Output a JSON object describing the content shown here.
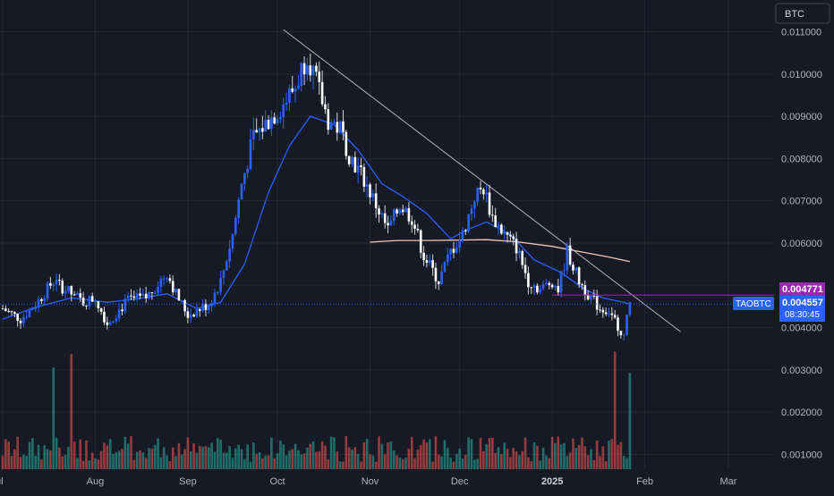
{
  "currency_badge": "BTC",
  "chart_data": {
    "type": "candlestick",
    "symbol": "TAOBTC",
    "title": "",
    "xlabel": "",
    "ylabel": "",
    "y_unit": "BTC",
    "x_axis": {
      "labels": [
        "ul",
        "Aug",
        "Sep",
        "Oct",
        "Nov",
        "Dec",
        "2025",
        "Feb",
        "Mar"
      ],
      "dates": [
        "2024-07-01",
        "2024-08-01",
        "2024-09-01",
        "2024-10-01",
        "2024-11-01",
        "2024-12-01",
        "2025-01-01",
        "2025-02-01",
        "2025-03-01"
      ],
      "range": [
        "2024-07-01",
        "2025-03-06"
      ]
    },
    "y_axis": {
      "ticks": [
        "0.001000",
        "0.002000",
        "0.003000",
        "0.004000",
        "0.006000",
        "0.007000",
        "0.008000",
        "0.009000",
        "0.010000",
        "0.011000"
      ],
      "tick_values": [
        0.001,
        0.002,
        0.003,
        0.004,
        0.006,
        0.007,
        0.008,
        0.009,
        0.01,
        0.011
      ],
      "range": [
        0.00065,
        0.01175
      ],
      "position": "right"
    },
    "price_key_dates": [
      "2024-07-01",
      "2024-07-07",
      "2024-07-12",
      "2024-07-18",
      "2024-07-24",
      "2024-07-28",
      "2024-08-01",
      "2024-08-05",
      "2024-08-12",
      "2024-08-18",
      "2024-08-25",
      "2024-08-28",
      "2024-09-01",
      "2024-09-08",
      "2024-09-12",
      "2024-09-16",
      "2024-09-19",
      "2024-09-23",
      "2024-09-28",
      "2024-10-02",
      "2024-10-07",
      "2024-10-11",
      "2024-10-14",
      "2024-10-18",
      "2024-10-22",
      "2024-10-25",
      "2024-10-30",
      "2024-11-03",
      "2024-11-07",
      "2024-11-11",
      "2024-11-15",
      "2024-11-19",
      "2024-11-24",
      "2024-11-28",
      "2024-12-02",
      "2024-12-06",
      "2024-12-09",
      "2024-12-12",
      "2024-12-16",
      "2024-12-20",
      "2024-12-24",
      "2024-12-28",
      "2025-01-01",
      "2025-01-03",
      "2025-01-06",
      "2025-01-10",
      "2025-01-14",
      "2025-01-17",
      "2025-01-20",
      "2025-01-25",
      "2025-01-27"
    ],
    "price_key_values": [
      0.00445,
      0.0042,
      0.00455,
      0.0051,
      0.0048,
      0.0046,
      0.0047,
      0.0041,
      0.00465,
      0.0047,
      0.0053,
      0.0048,
      0.0043,
      0.00455,
      0.0051,
      0.0062,
      0.0074,
      0.0085,
      0.0089,
      0.0092,
      0.0097,
      0.0105,
      0.0098,
      0.0089,
      0.0087,
      0.0081,
      0.0075,
      0.0069,
      0.0063,
      0.0069,
      0.0066,
      0.0057,
      0.0051,
      0.0058,
      0.0062,
      0.0071,
      0.0073,
      0.0066,
      0.0062,
      0.0059,
      0.0051,
      0.0049,
      0.0051,
      0.0049,
      0.0058,
      0.0051,
      0.0047,
      0.00445,
      0.0044,
      0.0038,
      0.0046
    ],
    "ma_fast": {
      "name": "",
      "color": "#2962ff",
      "dates": [
        "2024-07-01",
        "2024-07-12",
        "2024-07-24",
        "2024-08-05",
        "2024-08-15",
        "2024-08-25",
        "2024-09-04",
        "2024-09-12",
        "2024-09-20",
        "2024-09-28",
        "2024-10-05",
        "2024-10-12",
        "2024-10-20",
        "2024-10-28",
        "2024-11-05",
        "2024-11-12",
        "2024-11-20",
        "2024-11-28",
        "2024-12-03",
        "2024-12-10",
        "2024-12-18",
        "2024-12-26",
        "2025-01-04",
        "2025-01-12",
        "2025-01-18",
        "2025-01-25",
        "2025-01-27"
      ],
      "values": [
        0.0042,
        0.00448,
        0.0047,
        0.0046,
        0.00468,
        0.0048,
        0.00445,
        0.0046,
        0.0055,
        0.0072,
        0.0083,
        0.009,
        0.0088,
        0.0082,
        0.0074,
        0.0071,
        0.0067,
        0.0061,
        0.0063,
        0.0065,
        0.0062,
        0.0056,
        0.0053,
        0.0049,
        0.0047,
        0.0046,
        0.00455
      ]
    },
    "ma_slow": {
      "name": "",
      "color": "#f0c8b4",
      "dates": [
        "2024-11-01",
        "2024-11-10",
        "2024-11-20",
        "2024-12-01",
        "2024-12-10",
        "2024-12-20",
        "2025-01-01",
        "2025-01-10",
        "2025-01-20",
        "2025-01-27"
      ],
      "values": [
        0.00602,
        0.00606,
        0.00606,
        0.00607,
        0.00608,
        0.00603,
        0.00592,
        0.0058,
        0.00567,
        0.00556
      ]
    },
    "trendline": {
      "start": [
        "2024-10-03",
        0.01105
      ],
      "end": [
        "2025-02-13",
        0.0039
      ],
      "color": "#b2b5be"
    },
    "volume": {
      "scale": [
        0,
        0.0033
      ],
      "series_colors": {
        "up": "#26a69a",
        "down": "#ef5350"
      },
      "spike_dates": [
        "2024-07-18",
        "2024-07-24",
        "2025-01-22",
        "2025-01-27"
      ]
    },
    "labels": {
      "high_value": "0.004771",
      "last_price": "0.004557",
      "symbol_tag": "TAOBTC",
      "countdown": "08:30:45",
      "high_color": "#9c27b0",
      "last_color": "#2962ff"
    },
    "grid": true,
    "legend": "none"
  }
}
